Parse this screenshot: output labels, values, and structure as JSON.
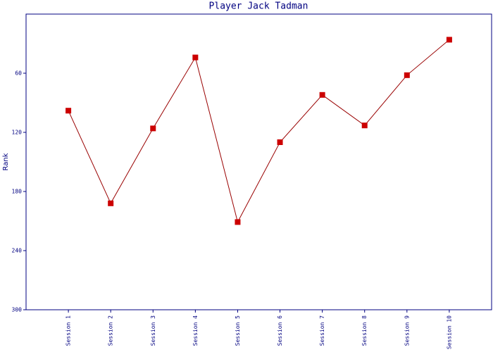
{
  "chart_data": {
    "type": "line",
    "title": "Player Jack Tadman",
    "y_label": "Rank",
    "categories": [
      "Session 1",
      "Session 2",
      "Session 3",
      "Session 4",
      "Session 5",
      "Session 6",
      "Session 7",
      "Session 8",
      "Session 9",
      "Session 10"
    ],
    "values": [
      98,
      192,
      116,
      44,
      211,
      130,
      82,
      113,
      62,
      26
    ],
    "line_color": "#990000",
    "marker_color": "#cc0000",
    "ylim": [
      0,
      300
    ],
    "inverted": true,
    "yticks": [
      60,
      120,
      180,
      240,
      300
    ]
  }
}
